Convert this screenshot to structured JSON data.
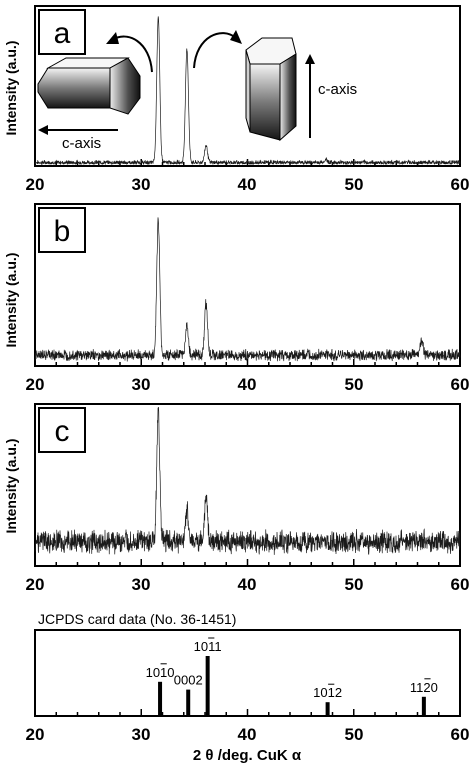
{
  "chart_data": [
    {
      "type": "line",
      "panel_label": "a",
      "ylabel": "Intensity (a.u.)",
      "xlim": [
        20,
        60
      ],
      "xticks": [
        "20",
        "30",
        "40",
        "50",
        "60"
      ],
      "noise": 0.012,
      "baseline": 0.01,
      "peaks": [
        {
          "x": 31.6,
          "y": 1.0
        },
        {
          "x": 34.3,
          "y": 0.78
        },
        {
          "x": 36.1,
          "y": 0.12
        },
        {
          "x": 47.4,
          "y": 0.02
        }
      ],
      "annotations": {
        "left_axis": "c-axis",
        "right_axis": "c-axis"
      }
    },
    {
      "type": "line",
      "panel_label": "b",
      "ylabel": "Intensity (a.u.)",
      "xlim": [
        20,
        60
      ],
      "xticks": [
        "20",
        "30",
        "40",
        "50",
        "60"
      ],
      "noise": 0.03,
      "baseline": 0.06,
      "peaks": [
        {
          "x": 31.6,
          "y": 0.92
        },
        {
          "x": 34.3,
          "y": 0.2
        },
        {
          "x": 36.1,
          "y": 0.35
        },
        {
          "x": 56.4,
          "y": 0.1
        }
      ]
    },
    {
      "type": "line",
      "panel_label": "c",
      "ylabel": "Intensity (a.u.)",
      "xlim": [
        20,
        60
      ],
      "xticks": [
        "20",
        "30",
        "40",
        "50",
        "60"
      ],
      "noise": 0.06,
      "baseline": 0.15,
      "peaks": [
        {
          "x": 31.6,
          "y": 0.88
        },
        {
          "x": 34.3,
          "y": 0.22
        },
        {
          "x": 36.1,
          "y": 0.3
        }
      ]
    },
    {
      "type": "bar",
      "title": "JCPDS card data (No. 36-1451)",
      "xlabel": "2 θ /deg.  CuK α",
      "xlim": [
        20,
        60
      ],
      "xticks": [
        "20",
        "30",
        "40",
        "50",
        "60"
      ],
      "lines": [
        {
          "x": 31.77,
          "value": 0.57,
          "label": "1010",
          "bar_index": 2
        },
        {
          "x": 34.42,
          "value": 0.44,
          "label": "0002",
          "bar_index": -1
        },
        {
          "x": 36.25,
          "value": 1.0,
          "label": "1011",
          "bar_index": 2
        },
        {
          "x": 47.54,
          "value": 0.23,
          "label": "1012",
          "bar_index": 2
        },
        {
          "x": 56.6,
          "value": 0.32,
          "label": "1120",
          "bar_index": 2
        }
      ]
    }
  ]
}
